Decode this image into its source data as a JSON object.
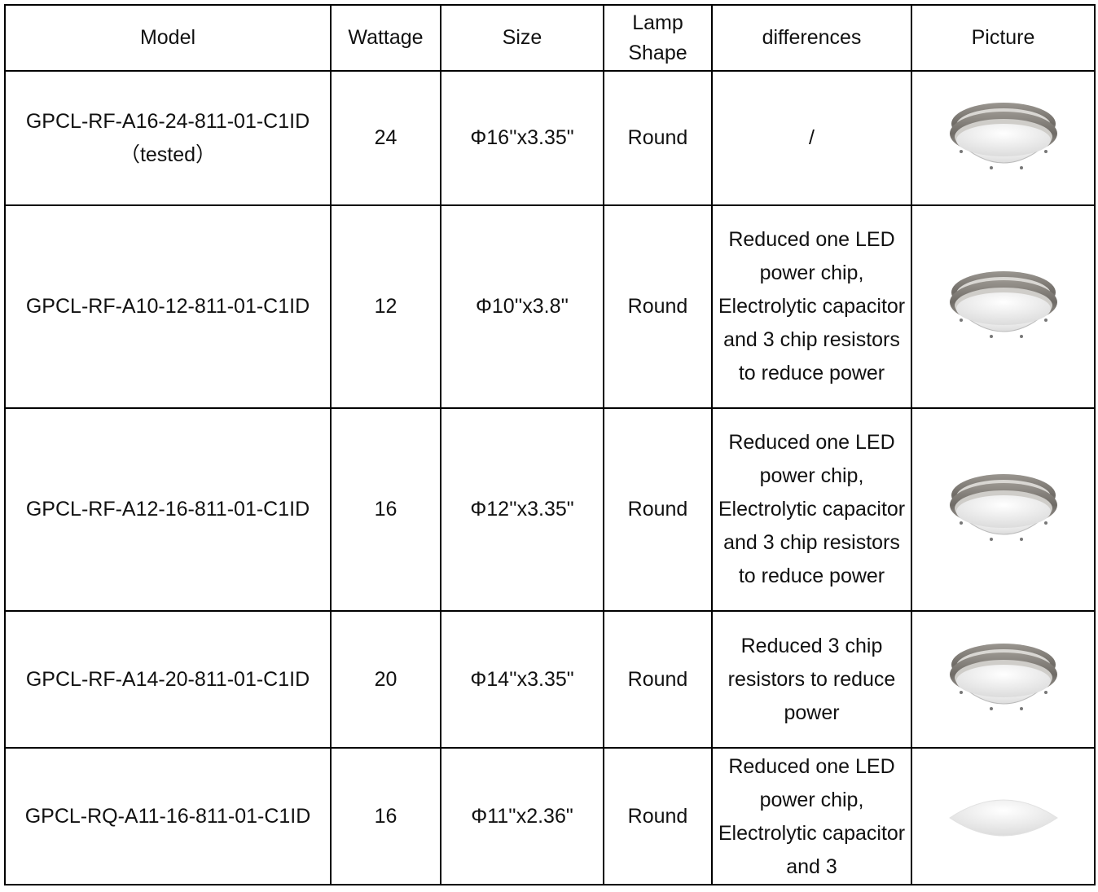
{
  "table": {
    "header": [
      "Model",
      "Wattage",
      "Size",
      "Lamp Shape",
      "differences",
      "Picture"
    ],
    "rows": [
      {
        "model": "GPCL-RF-A16-24-811-01-C1ID",
        "note": "（tested）",
        "wattage": 24,
        "size": "Φ16''x3.35\"",
        "shape": "Round",
        "differences": "/"
      },
      {
        "model": "GPCL-RF-A10-12-811-01-C1ID",
        "wattage": 12,
        "size": "Φ10''x3.8''",
        "shape": "Round",
        "differences": "Reduced one LED power chip, Electrolytic capacitor and 3 chip resistors to reduce power"
      },
      {
        "model": "GPCL-RF-A12-16-811-01-C1ID",
        "wattage": 16,
        "size": "Φ12''x3.35\"",
        "shape": "Round",
        "differences": "Reduced one LED power chip, Electrolytic capacitor and 3 chip resistors to reduce power"
      },
      {
        "model": "GPCL-RF-A14-20-811-01-C1ID",
        "wattage": 20,
        "size": "Φ14''x3.35\"",
        "shape": "Round",
        "differences": "Reduced 3 chip resistors to reduce power"
      },
      {
        "model": "GPCL-RQ-A11-16-811-01-C1ID",
        "wattage": 16,
        "size": "Φ11''x2.36\"",
        "shape": "Round",
        "differences": "Reduced one LED power chip, Electrolytic capacitor and 3"
      }
    ]
  }
}
